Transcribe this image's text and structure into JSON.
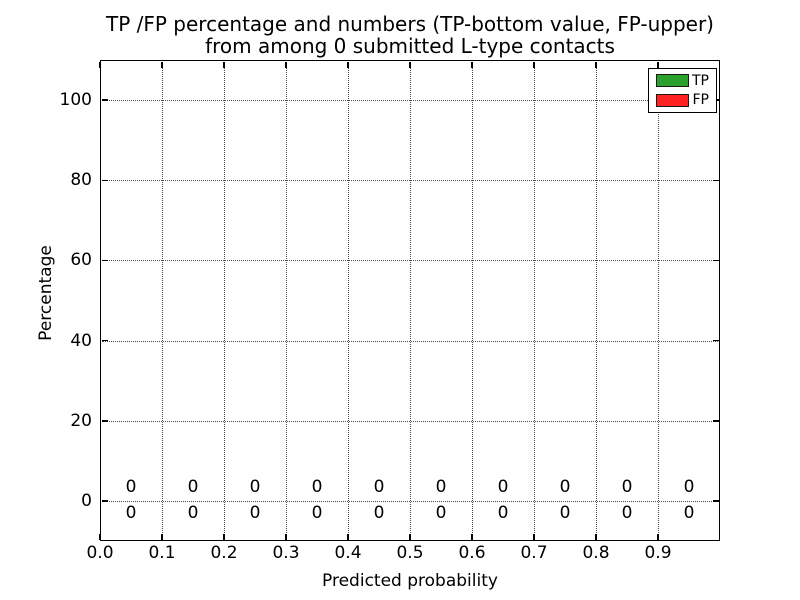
{
  "chart_data": {
    "type": "bar",
    "title": "TP /FP percentage and numbers (TP-bottom value, FP-upper)\nfrom among 0 submitted L-type contacts",
    "title_lines": [
      "TP /FP percentage and numbers (TP-bottom value, FP-upper)",
      "from among 0 submitted L-type contacts"
    ],
    "xlabel": "Predicted probability",
    "ylabel": "Percentage",
    "xlim": [
      0.0,
      1.0
    ],
    "ylim": [
      -10,
      110
    ],
    "grid": {
      "visible": true,
      "style": "dotted",
      "color": "#4a4a4a"
    },
    "xticks": [
      {
        "value": 0.0,
        "label": "0.0"
      },
      {
        "value": 0.1,
        "label": "0.1"
      },
      {
        "value": 0.2,
        "label": "0.2"
      },
      {
        "value": 0.3,
        "label": "0.3"
      },
      {
        "value": 0.4,
        "label": "0.4"
      },
      {
        "value": 0.5,
        "label": "0.5"
      },
      {
        "value": 0.6,
        "label": "0.6"
      },
      {
        "value": 0.7,
        "label": "0.7"
      },
      {
        "value": 0.8,
        "label": "0.8"
      },
      {
        "value": 0.9,
        "label": "0.9"
      }
    ],
    "yticks": [
      {
        "value": 0,
        "label": "0"
      },
      {
        "value": 20,
        "label": "20"
      },
      {
        "value": 40,
        "label": "40"
      },
      {
        "value": 60,
        "label": "60"
      },
      {
        "value": 80,
        "label": "80"
      },
      {
        "value": 100,
        "label": "100"
      }
    ],
    "categories": [
      0.05,
      0.15,
      0.25,
      0.35,
      0.45,
      0.55,
      0.65,
      0.75,
      0.85,
      0.95
    ],
    "series": [
      {
        "name": "TP",
        "color": "#2CA02C",
        "values": [
          0,
          0,
          0,
          0,
          0,
          0,
          0,
          0,
          0,
          0
        ],
        "count_labels": [
          "0",
          "0",
          "0",
          "0",
          "0",
          "0",
          "0",
          "0",
          "0",
          "0"
        ],
        "label_position": "below-axis"
      },
      {
        "name": "FP",
        "color": "#FF2222",
        "values": [
          0,
          0,
          0,
          0,
          0,
          0,
          0,
          0,
          0,
          0
        ],
        "count_labels": [
          "0",
          "0",
          "0",
          "0",
          "0",
          "0",
          "0",
          "0",
          "0",
          "0"
        ],
        "label_position": "above-axis"
      }
    ],
    "legend": {
      "position": "upper-right",
      "entries": [
        {
          "label": "TP",
          "color": "#2CA02C"
        },
        {
          "label": "FP",
          "color": "#FF2222"
        }
      ]
    }
  }
}
